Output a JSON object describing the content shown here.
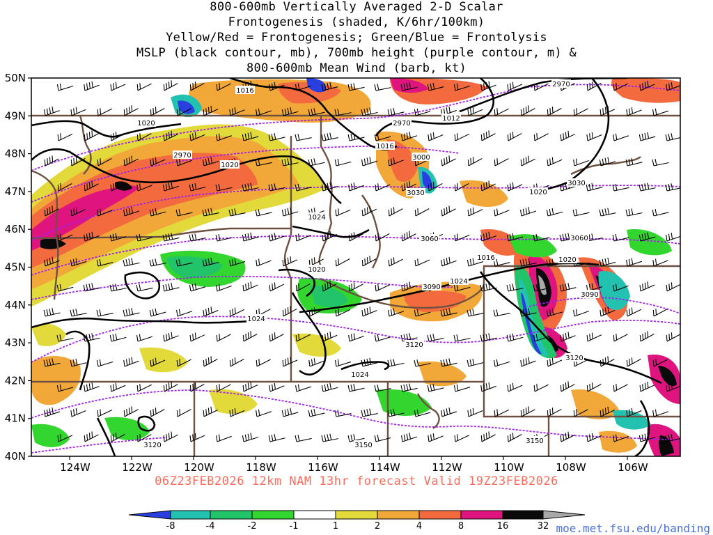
{
  "title": {
    "lines": [
      "800-600mb Vertically Averaged 2-D Scalar",
      "Frontogenesis (shaded, K/6hr/100km)",
      "Yellow/Red = Frontogenesis;  Green/Blue = Frontolysis",
      "MSLP (black contour, mb), 700mb height (purple contour, m) &",
      "800-600mb Mean Wind (barb, kt)"
    ]
  },
  "axes": {
    "lat_labels": [
      "50N",
      "49N",
      "48N",
      "47N",
      "46N",
      "45N",
      "44N",
      "43N",
      "42N",
      "41N",
      "40N"
    ],
    "lon_labels": [
      "124W",
      "122W",
      "120W",
      "118W",
      "116W",
      "114W",
      "112W",
      "110W",
      "108W",
      "106W"
    ]
  },
  "mslp_labels": [
    "1016",
    "1020",
    "1012",
    "1016",
    "1020",
    "1020",
    "1024",
    "1016",
    "1020",
    "1020",
    "1024",
    "1024",
    "1024"
  ],
  "height_labels": [
    "2970",
    "2970",
    "2970",
    "3000",
    "3030",
    "3030",
    "3060",
    "3060",
    "3090",
    "3090",
    "3120",
    "3120",
    "3120",
    "3150",
    "3150"
  ],
  "valid_text": "06Z23FEB2026 12km NAM 13hr forecast Valid 19Z23FEB2026",
  "colorbar": {
    "labels": [
      "-8",
      "-4",
      "-2",
      "-1",
      "1",
      "2",
      "4",
      "8",
      "16",
      "32"
    ],
    "colors": [
      "#2a3fe0",
      "#23c2b0",
      "#22c46a",
      "#33d62e",
      "#ffffff",
      "#e2d93a",
      "#f2a838",
      "#f26a3e",
      "#e0147e",
      "#0a0a0a",
      "#a8a8a8"
    ]
  },
  "credit": "moe.met.fsu.edu/banding",
  "styles": {
    "mslp_color": "#000000",
    "height_color": "#a020f0",
    "border_color": "#6e5040"
  }
}
